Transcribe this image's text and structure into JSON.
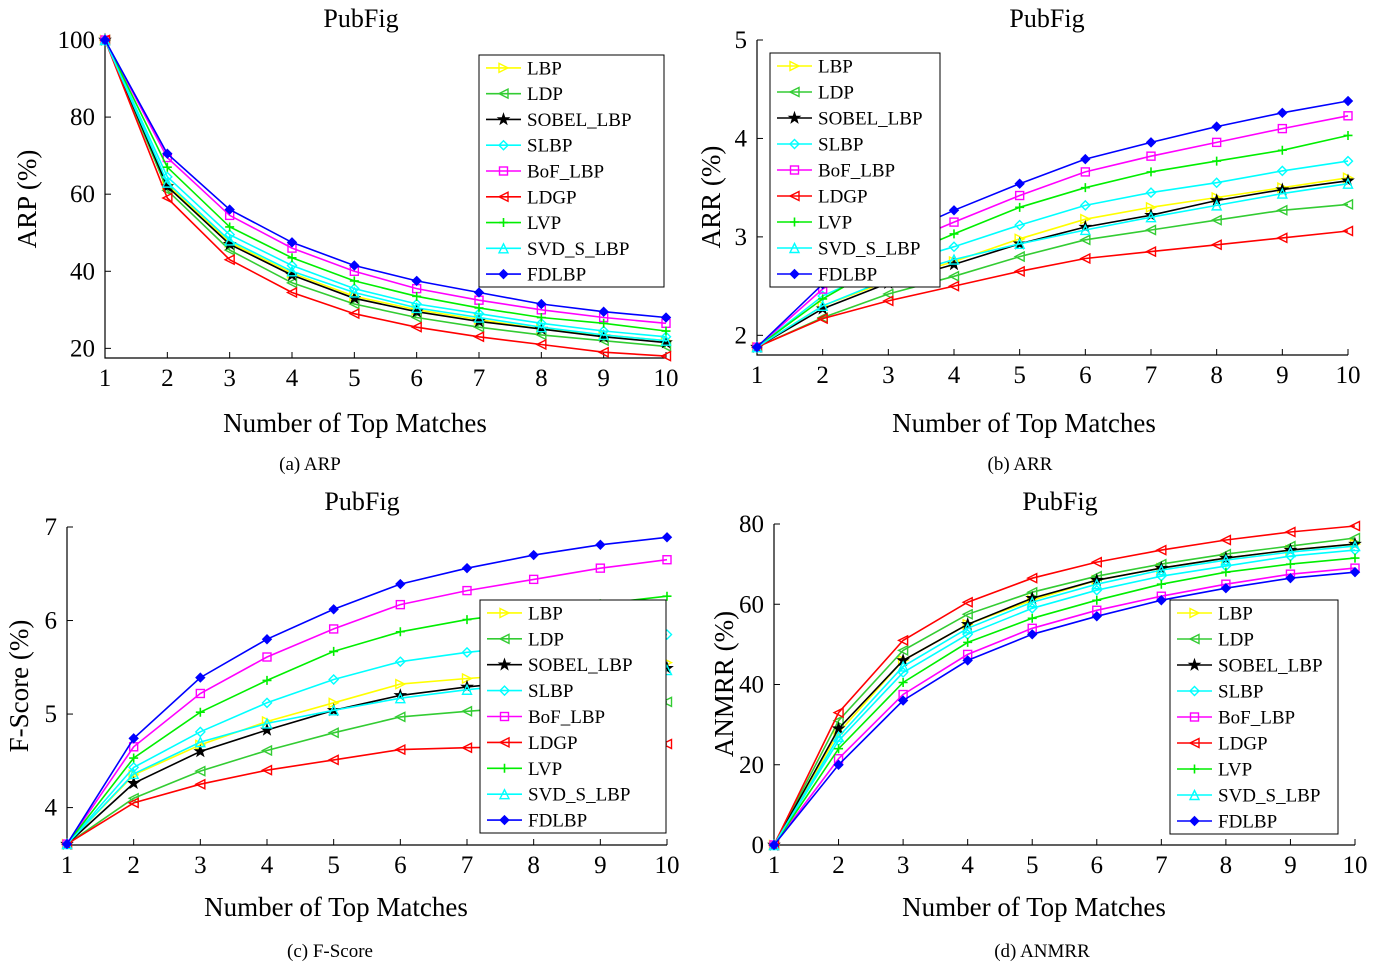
{
  "series_styles": [
    {
      "name": "LBP",
      "color": "#ffff00",
      "marker": "triangle-right"
    },
    {
      "name": "LDP",
      "color": "#33cc33",
      "marker": "triangle-left"
    },
    {
      "name": "SOBEL_LBP",
      "color": "#000000",
      "marker": "star"
    },
    {
      "name": "SLBP",
      "color": "#00ffff",
      "marker": "diamond"
    },
    {
      "name": "BoF_LBP",
      "color": "#ff00ff",
      "marker": "square"
    },
    {
      "name": "LDGP",
      "color": "#ff0000",
      "marker": "triangle-left"
    },
    {
      "name": "LVP",
      "color": "#00ee00",
      "marker": "plus"
    },
    {
      "name": "SVD_S_LBP",
      "color": "#00ffff",
      "marker": "triangle-up"
    },
    {
      "name": "FDLBP",
      "color": "#0000ff",
      "marker": "diamond-filled"
    }
  ],
  "chart_data": [
    {
      "type": "line",
      "title": "PubFig",
      "xlabel": "Number of Top Matches",
      "ylabel": "ARP (%)",
      "caption": "(a) ARP",
      "x": [
        1,
        2,
        3,
        4,
        5,
        6,
        7,
        8,
        9,
        10
      ],
      "xlim": [
        1,
        10
      ],
      "ylim": [
        17.5,
        100
      ],
      "yticks": [
        20,
        40,
        60,
        80,
        100
      ],
      "legend": "top-right",
      "series": [
        {
          "name": "LBP",
          "values": [
            100,
            62.5,
            47.5,
            39.5,
            33.5,
            30,
            27.5,
            25,
            23.5,
            22
          ]
        },
        {
          "name": "LDP",
          "values": [
            100,
            61,
            45.5,
            37,
            31.5,
            28,
            25.5,
            23.5,
            22,
            20.5
          ]
        },
        {
          "name": "SOBEL_LBP",
          "values": [
            100,
            62,
            47,
            39,
            33,
            29.5,
            27,
            25,
            23,
            21.5
          ]
        },
        {
          "name": "SLBP",
          "values": [
            100,
            64.5,
            49.5,
            41.5,
            35.5,
            31.5,
            29,
            26.5,
            24.5,
            23
          ]
        },
        {
          "name": "BoF_LBP",
          "values": [
            100,
            69.5,
            54.5,
            46,
            40,
            35.5,
            32.5,
            30,
            28,
            26.5
          ]
        },
        {
          "name": "LDGP",
          "values": [
            100,
            59,
            43,
            34.5,
            29,
            25.5,
            23,
            21,
            19,
            18
          ]
        },
        {
          "name": "LVP",
          "values": [
            100,
            67,
            51.5,
            43.5,
            37.5,
            33.5,
            30.5,
            28,
            26.5,
            24.5
          ]
        },
        {
          "name": "SVD_S_LBP",
          "values": [
            100,
            63,
            48,
            40,
            34.5,
            30.5,
            28,
            25.5,
            23.5,
            22
          ]
        },
        {
          "name": "FDLBP",
          "values": [
            100,
            70.5,
            56,
            47.5,
            41.5,
            37.5,
            34.5,
            31.5,
            29.5,
            28
          ]
        }
      ]
    },
    {
      "type": "line",
      "title": "PubFig",
      "xlabel": "Number of Top Matches",
      "ylabel": "ARR (%)",
      "caption": "(b) ARR",
      "x": [
        1,
        2,
        3,
        4,
        5,
        6,
        7,
        8,
        9,
        10
      ],
      "xlim": [
        1,
        10
      ],
      "ylim": [
        1.8,
        5
      ],
      "yticks": [
        2,
        3,
        4,
        5
      ],
      "legend": "top-left",
      "series": [
        {
          "name": "LBP",
          "values": [
            1.88,
            2.3,
            2.55,
            2.75,
            2.98,
            3.18,
            3.3,
            3.4,
            3.5,
            3.6
          ]
        },
        {
          "name": "LDP",
          "values": [
            1.88,
            2.18,
            2.42,
            2.6,
            2.8,
            2.97,
            3.07,
            3.17,
            3.27,
            3.33
          ]
        },
        {
          "name": "SOBEL_LBP",
          "values": [
            1.88,
            2.27,
            2.53,
            2.72,
            2.93,
            3.1,
            3.22,
            3.37,
            3.48,
            3.57
          ]
        },
        {
          "name": "SLBP",
          "values": [
            1.88,
            2.4,
            2.7,
            2.9,
            3.12,
            3.32,
            3.45,
            3.55,
            3.67,
            3.77
          ]
        },
        {
          "name": "BoF_LBP",
          "values": [
            1.88,
            2.47,
            2.87,
            3.15,
            3.42,
            3.66,
            3.82,
            3.96,
            4.1,
            4.23
          ]
        },
        {
          "name": "LDGP",
          "values": [
            1.88,
            2.17,
            2.35,
            2.5,
            2.65,
            2.78,
            2.85,
            2.92,
            2.99,
            3.06
          ]
        },
        {
          "name": "LVP",
          "values": [
            1.88,
            2.37,
            2.75,
            3.03,
            3.3,
            3.5,
            3.66,
            3.77,
            3.88,
            4.03
          ]
        },
        {
          "name": "SVD_S_LBP",
          "values": [
            1.88,
            2.3,
            2.57,
            2.77,
            2.93,
            3.07,
            3.2,
            3.32,
            3.44,
            3.54
          ]
        },
        {
          "name": "FDLBP",
          "values": [
            1.88,
            2.52,
            2.97,
            3.27,
            3.54,
            3.79,
            3.96,
            4.12,
            4.26,
            4.38
          ]
        }
      ]
    },
    {
      "type": "line",
      "title": "PubFig",
      "xlabel": "Number of Top Matches",
      "ylabel": "F-Score (%)",
      "caption": "(c) F-Score",
      "x": [
        1,
        2,
        3,
        4,
        5,
        6,
        7,
        8,
        9,
        10
      ],
      "xlim": [
        1,
        10
      ],
      "ylim": [
        3.6,
        7
      ],
      "yticks": [
        4,
        5,
        6,
        7
      ],
      "legend": "right",
      "series": [
        {
          "name": "LBP",
          "values": [
            3.61,
            4.35,
            4.67,
            4.92,
            5.12,
            5.32,
            5.38,
            5.43,
            5.48,
            5.55
          ]
        },
        {
          "name": "LDP",
          "values": [
            3.61,
            4.1,
            4.39,
            4.61,
            4.8,
            4.97,
            5.03,
            5.08,
            5.11,
            5.13
          ]
        },
        {
          "name": "SOBEL_LBP",
          "values": [
            3.61,
            4.26,
            4.6,
            4.83,
            5.04,
            5.2,
            5.29,
            5.36,
            5.42,
            5.49
          ]
        },
        {
          "name": "SLBP",
          "values": [
            3.61,
            4.43,
            4.81,
            5.12,
            5.37,
            5.56,
            5.66,
            5.73,
            5.79,
            5.85
          ]
        },
        {
          "name": "BoF_LBP",
          "values": [
            3.61,
            4.65,
            5.22,
            5.61,
            5.91,
            6.17,
            6.32,
            6.44,
            6.56,
            6.65
          ]
        },
        {
          "name": "LDGP",
          "values": [
            3.61,
            4.05,
            4.25,
            4.4,
            4.51,
            4.62,
            4.64,
            4.65,
            4.66,
            4.68
          ]
        },
        {
          "name": "LVP",
          "values": [
            3.61,
            4.53,
            5.02,
            5.36,
            5.67,
            5.88,
            6.01,
            6.1,
            6.18,
            6.26
          ]
        },
        {
          "name": "SVD_S_LBP",
          "values": [
            3.61,
            4.36,
            4.7,
            4.9,
            5.04,
            5.17,
            5.26,
            5.33,
            5.4,
            5.47
          ]
        },
        {
          "name": "FDLBP",
          "values": [
            3.61,
            4.74,
            5.39,
            5.8,
            6.12,
            6.39,
            6.56,
            6.7,
            6.81,
            6.89
          ]
        }
      ]
    },
    {
      "type": "line",
      "title": "PubFig",
      "xlabel": "Number of Top Matches",
      "ylabel": "ANMRR (%)",
      "caption": "(d) ANMRR",
      "x": [
        1,
        2,
        3,
        4,
        5,
        6,
        7,
        8,
        9,
        10
      ],
      "xlim": [
        1,
        10
      ],
      "ylim": [
        0,
        80
      ],
      "yticks": [
        0,
        20,
        40,
        60,
        80
      ],
      "legend": "bottom-right",
      "series": [
        {
          "name": "LBP",
          "values": [
            0,
            28,
            46,
            55,
            61,
            66,
            69,
            71.5,
            73.5,
            75
          ]
        },
        {
          "name": "LDP",
          "values": [
            0,
            31,
            48.5,
            57.5,
            63,
            67,
            70,
            72.5,
            74.5,
            76.5
          ]
        },
        {
          "name": "SOBEL_LBP",
          "values": [
            0,
            29,
            46,
            55,
            61.5,
            66,
            69,
            71.5,
            73.5,
            75
          ]
        },
        {
          "name": "SLBP",
          "values": [
            0,
            26,
            43,
            52.5,
            59,
            63.5,
            67,
            69.5,
            72,
            73.5
          ]
        },
        {
          "name": "BoF_LBP",
          "values": [
            0,
            21.5,
            37.5,
            47.5,
            54,
            58.5,
            62,
            65,
            67.5,
            69
          ]
        },
        {
          "name": "LDGP",
          "values": [
            0,
            33,
            51,
            60.5,
            66.5,
            70.5,
            73.5,
            76,
            78,
            79.5
          ]
        },
        {
          "name": "LVP",
          "values": [
            0,
            24,
            40.5,
            50.5,
            56.5,
            61,
            65,
            68,
            70,
            71.5
          ]
        },
        {
          "name": "SVD_S_LBP",
          "values": [
            0,
            27,
            44.5,
            54,
            60.5,
            65,
            68.5,
            71,
            73,
            74.5
          ]
        },
        {
          "name": "FDLBP",
          "values": [
            0,
            20,
            36,
            46,
            52.5,
            57,
            61,
            64,
            66.5,
            68
          ]
        }
      ]
    }
  ]
}
